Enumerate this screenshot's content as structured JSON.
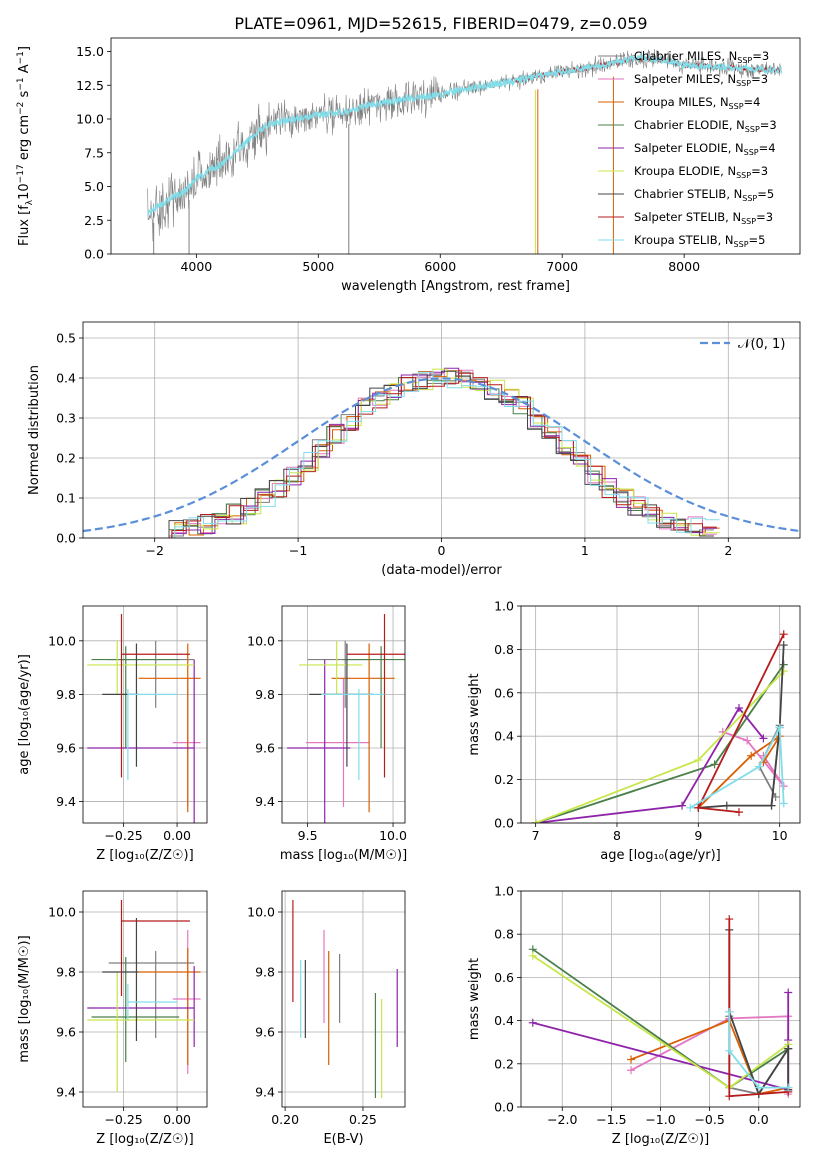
{
  "figure": {
    "title": "PLATE=0961, MJD=52615, FIBERID=0479, z=0.059"
  },
  "models": [
    {
      "label": "Chabrier MILES",
      "nssp": "3",
      "color": "#7f7f7f"
    },
    {
      "label": "Salpeter MILES",
      "nssp": "3",
      "color": "#e377c2"
    },
    {
      "label": "Kroupa MILES",
      "nssp": "4",
      "color": "#d95f02"
    },
    {
      "label": "Chabrier ELODIE",
      "nssp": "3",
      "color": "#4a7f4a"
    },
    {
      "label": "Salpeter ELODIE",
      "nssp": "4",
      "color": "#8e24aa"
    },
    {
      "label": "Kroupa ELODIE",
      "nssp": "3",
      "color": "#c7e64a"
    },
    {
      "label": "Chabrier STELIB",
      "nssp": "5",
      "color": "#444444"
    },
    {
      "label": "Salpeter STELIB",
      "nssp": "3",
      "color": "#b71c1c"
    },
    {
      "label": "Kroupa STELIB",
      "nssp": "5",
      "color": "#80deea"
    }
  ],
  "chart_data": [
    {
      "id": "spectrum",
      "type": "line",
      "xlabel": "wavelength [Angstrom, rest frame]",
      "ylabel_main": "Flux [f",
      "ylabel_sub1": "λ",
      "ylabel_mid": "10",
      "ylabel_sup1": "−17",
      "ylabel_post": " erg cm",
      "ylabel_sup2": "−2",
      "ylabel_mid2": " s",
      "ylabel_sup3": "−1",
      "ylabel_end": " A",
      "ylabel_sup4": "−1",
      "ylabel_close": "]",
      "xlim": [
        3300,
        8950
      ],
      "ylim": [
        0,
        16
      ],
      "xticks": [
        4000,
        5000,
        6000,
        7000,
        8000
      ],
      "yticks": [
        0,
        2.5,
        5,
        7.5,
        10,
        12.5,
        15
      ],
      "ytick_labels": [
        "0.0",
        "2.5",
        "5.0",
        "7.5",
        "10.0",
        "12.5",
        "15.0"
      ],
      "data_color": "#7f7f7f",
      "model_color": "#80deea",
      "continuum_x": [
        3600,
        3700,
        3800,
        3900,
        4000,
        4100,
        4200,
        4300,
        4400,
        4500,
        4600,
        4800,
        5000,
        5200,
        5400,
        5600,
        5800,
        6000,
        6200,
        6400,
        6600,
        6800,
        7000,
        7200,
        7400,
        7600,
        7800,
        8000,
        8200,
        8400,
        8600,
        8800
      ],
      "continuum_y": [
        3.0,
        3.6,
        4.2,
        4.6,
        5.6,
        6.2,
        6.6,
        7.4,
        8.2,
        9.0,
        9.6,
        10.0,
        10.3,
        10.5,
        11.0,
        11.3,
        11.6,
        11.8,
        12.2,
        12.5,
        12.8,
        13.2,
        13.5,
        13.8,
        14.1,
        14.5,
        14.4,
        14.0,
        13.9,
        13.8,
        13.7,
        13.6
      ]
    },
    {
      "id": "residuals",
      "type": "histogram",
      "xlabel": "(data-model)/error",
      "ylabel": "Normed distribution",
      "xlim": [
        -2.5,
        2.5
      ],
      "ylim": [
        0,
        0.54
      ],
      "xticks": [
        -2,
        -1,
        0,
        1,
        2
      ],
      "xtick_labels": [
        "−2",
        "−1",
        "0",
        "1",
        "2"
      ],
      "yticks": [
        0,
        0.1,
        0.2,
        0.3,
        0.4,
        0.5
      ],
      "ytick_labels": [
        "0.0",
        "0.1",
        "0.2",
        "0.3",
        "0.4",
        "0.5"
      ],
      "legend": "𝒩(0, 1)",
      "gauss_color": "#5b8fd9",
      "bin_width": 0.1,
      "center_values": [
        0.022,
        0.028,
        0.035,
        0.046,
        0.06,
        0.078,
        0.1,
        0.125,
        0.155,
        0.19,
        0.225,
        0.26,
        0.29,
        0.33,
        0.35,
        0.37,
        0.385,
        0.395,
        0.4,
        0.4,
        0.395,
        0.385,
        0.37,
        0.35,
        0.33,
        0.29,
        0.26,
        0.225,
        0.19,
        0.155,
        0.125,
        0.1,
        0.078,
        0.06,
        0.046,
        0.035,
        0.028,
        0.022
      ]
    },
    {
      "id": "z-age",
      "type": "errorbar",
      "xlabel": "Z [log₁₀(Z/Z☉)]",
      "ylabel": "age  [log₁₀(age/yr)]",
      "xlim": [
        -0.44,
        0.14
      ],
      "ylim": [
        9.32,
        10.13
      ],
      "xticks": [
        -0.25,
        0.0
      ],
      "xtick_labels": [
        "−0.25",
        "0.00"
      ],
      "yticks": [
        9.4,
        9.6,
        9.8,
        10.0
      ],
      "ytick_labels": [
        "9.4",
        "9.6",
        "9.8",
        "10.0"
      ]
    },
    {
      "id": "mass-age",
      "type": "errorbar",
      "xlabel": "mass [log₁₀(M/M☉)]",
      "ylabel": "",
      "xlim": [
        9.35,
        10.07
      ],
      "ylim": [
        9.32,
        10.13
      ],
      "xticks": [
        9.5,
        10.0
      ],
      "xtick_labels": [
        "9.5",
        "10.0"
      ],
      "yticks": [
        9.4,
        9.6,
        9.8,
        10.0
      ],
      "ytick_labels": [
        "9.4",
        "9.6",
        "9.8",
        "10.0"
      ]
    },
    {
      "id": "age-weight",
      "type": "line",
      "xlabel": "age  [log₁₀(age/yr)]",
      "ylabel": "mass weight",
      "xlim": [
        6.82,
        10.25
      ],
      "ylim": [
        0,
        1
      ],
      "xticks": [
        7,
        8,
        9,
        10
      ],
      "xtick_labels": [
        "7",
        "8",
        "9",
        "10"
      ],
      "yticks": [
        0,
        0.2,
        0.4,
        0.6,
        0.8,
        1.0
      ],
      "ytick_labels": [
        "0.0",
        "0.2",
        "0.4",
        "0.6",
        "0.8",
        "1.0"
      ]
    },
    {
      "id": "z-mass",
      "type": "errorbar",
      "xlabel": "Z [log₁₀(Z/Z☉)]",
      "ylabel": "mass [log₁₀(M/M☉)]",
      "xlim": [
        -0.44,
        0.14
      ],
      "ylim": [
        9.35,
        10.07
      ],
      "xticks": [
        -0.25,
        0.0
      ],
      "xtick_labels": [
        "−0.25",
        "0.00"
      ],
      "yticks": [
        9.4,
        9.6,
        9.8,
        10.0
      ],
      "ytick_labels": [
        "9.4",
        "9.6",
        "9.8",
        "10.0"
      ]
    },
    {
      "id": "ebv-mass",
      "type": "errorbar",
      "xlabel": "E(B-V)",
      "ylabel": "",
      "xlim": [
        0.198,
        0.277
      ],
      "ylim": [
        9.35,
        10.07
      ],
      "xticks": [
        0.2,
        0.25
      ],
      "xtick_labels": [
        "0.20",
        "0.25"
      ],
      "yticks": [
        9.4,
        9.6,
        9.8,
        10.0
      ],
      "ytick_labels": [
        "9.4",
        "9.6",
        "9.8",
        "10.0"
      ]
    },
    {
      "id": "z-weight",
      "type": "line",
      "xlabel": "Z [log₁₀(Z/Z☉)]",
      "ylabel": "mass weight",
      "xlim": [
        -2.42,
        0.42
      ],
      "ylim": [
        0,
        1
      ],
      "xticks": [
        -2.0,
        -1.5,
        -1.0,
        -0.5,
        0.0
      ],
      "xtick_labels": [
        "−2.0",
        "−1.5",
        "−1.0",
        "−0.5",
        "0.0"
      ],
      "yticks": [
        0,
        0.2,
        0.4,
        0.6,
        0.8,
        1.0
      ],
      "ytick_labels": [
        "0.0",
        "0.2",
        "0.4",
        "0.6",
        "0.8",
        "1.0"
      ]
    }
  ],
  "fits": [
    {
      "Z": -0.1,
      "Zlo": -0.32,
      "Zhi": 0.08,
      "age": 9.93,
      "ageLo": 9.75,
      "ageHi": 10.0,
      "mass": 9.72,
      "mLo": 9.58,
      "mHi": 9.84,
      "mz": 9.83,
      "mzlo": 9.58,
      "mzhi": 9.87,
      "ebv": 0.235,
      "ebvLo": 9.63,
      "ebvHi": 9.86,
      "ageW": [
        [
          9.9,
          0.08
        ],
        [
          10.0,
          0.45
        ],
        [
          9.75,
          0.26
        ],
        [
          9.95,
          0.12
        ]
      ],
      "zW": [
        [
          -0.3,
          0.42
        ],
        [
          -0.3,
          0.09
        ],
        [
          0.0,
          0.06
        ],
        [
          0.3,
          0.27
        ]
      ]
    },
    {
      "Z": 0.05,
      "Zlo": -0.02,
      "Zhi": 0.11,
      "age": 9.62,
      "ageLo": 9.38,
      "ageHi": 9.86,
      "mass": 9.71,
      "mLo": 9.48,
      "mHi": 9.94,
      "mz": 9.71,
      "mzlo": 9.46,
      "mzhi": 9.94,
      "ebv": 0.225,
      "ebvLo": 9.63,
      "ebvHi": 9.94,
      "ageW": [
        [
          9.3,
          0.42
        ],
        [
          9.6,
          0.38
        ],
        [
          10.05,
          0.17
        ],
        [
          9.8,
          0.31
        ]
      ],
      "zW": [
        [
          -1.3,
          0.17
        ],
        [
          -0.3,
          0.41
        ],
        [
          0.3,
          0.42
        ],
        [
          0.3,
          0.06
        ]
      ]
    },
    {
      "Z": 0.05,
      "Zlo": -0.18,
      "Zhi": 0.11,
      "age": 9.86,
      "ageLo": 9.36,
      "ageHi": 9.99,
      "mass": 9.86,
      "mLo": 9.45,
      "mHi": 9.94,
      "mz": 9.8,
      "mzlo": 9.49,
      "mzhi": 9.88,
      "ebv": 0.228,
      "ebvLo": 9.49,
      "ebvHi": 9.87,
      "ageW": [
        [
          9.0,
          0.07
        ],
        [
          9.65,
          0.31
        ],
        [
          10.0,
          0.4
        ],
        [
          9.8,
          0.28
        ]
      ],
      "zW": [
        [
          -1.3,
          0.22
        ],
        [
          -0.3,
          0.4
        ],
        [
          0.0,
          0.06
        ],
        [
          0.3,
          0.09
        ]
      ]
    },
    {
      "Z": -0.24,
      "Zlo": -0.4,
      "Zhi": 0.01,
      "age": 9.93,
      "ageLo": 9.6,
      "ageHi": 9.98,
      "mass": 9.93,
      "mLo": 9.55,
      "mHi": 9.96,
      "mz": 9.65,
      "mzlo": 9.5,
      "mzhi": 9.85,
      "ebv": 0.258,
      "ebvLo": 9.38,
      "ebvHi": 9.73,
      "ageW": [
        [
          7.0,
          0.0
        ],
        [
          9.2,
          0.27
        ],
        [
          10.05,
          0.73
        ]
      ],
      "zW": [
        [
          -2.3,
          0.73
        ],
        [
          -0.3,
          0.09
        ],
        [
          0.3,
          0.27
        ]
      ]
    },
    {
      "Z": 0.08,
      "Zlo": -0.42,
      "Zhi": 0.08,
      "age": 9.6,
      "ageLo": 9.29,
      "ageHi": 9.93,
      "mass": 9.6,
      "mLo": 9.29,
      "mHi": 9.93,
      "mz": 9.68,
      "mzlo": 9.55,
      "mzhi": 9.82,
      "ebv": 0.272,
      "ebvLo": 9.55,
      "ebvHi": 9.81,
      "ageW": [
        [
          7.0,
          0.0
        ],
        [
          8.8,
          0.08
        ],
        [
          9.5,
          0.53
        ],
        [
          9.8,
          0.39
        ]
      ],
      "zW": [
        [
          -2.3,
          0.39
        ],
        [
          0.3,
          0.08
        ],
        [
          0.3,
          0.53
        ],
        [
          0.3,
          0.31
        ]
      ]
    },
    {
      "Z": -0.28,
      "Zlo": -0.42,
      "Zhi": 0.08,
      "age": 9.91,
      "ageLo": 9.8,
      "ageHi": 10.0,
      "mass": 9.67,
      "mLo": 9.6,
      "mHi": 9.99,
      "mz": 9.64,
      "mzlo": 9.4,
      "mzhi": 9.8,
      "ebv": 0.262,
      "ebvLo": 9.38,
      "ebvHi": 9.71,
      "ageW": [
        [
          7.0,
          0.0
        ],
        [
          9.0,
          0.29
        ],
        [
          10.05,
          0.7
        ]
      ],
      "zW": [
        [
          -2.3,
          0.7
        ],
        [
          -0.3,
          0.09
        ],
        [
          0.3,
          0.29
        ]
      ]
    },
    {
      "Z": -0.19,
      "Zlo": -0.35,
      "Zhi": -0.18,
      "age": 9.8,
      "ageLo": 9.53,
      "ageHi": 9.99,
      "mass": 9.73,
      "mLo": 9.53,
      "mHi": 9.97,
      "mz": 9.8,
      "mzlo": 9.57,
      "mzhi": 9.98,
      "ebv": 0.213,
      "ebvLo": 9.58,
      "ebvHi": 9.84,
      "ageW": [
        [
          9.0,
          0.07
        ],
        [
          9.35,
          0.08
        ],
        [
          9.9,
          0.08
        ],
        [
          10.0,
          0.44
        ],
        [
          10.05,
          0.82
        ]
      ],
      "zW": [
        [
          -0.3,
          0.82
        ],
        [
          -0.3,
          0.44
        ],
        [
          0.0,
          0.06
        ],
        [
          0.3,
          0.27
        ],
        [
          0.3,
          0.08
        ]
      ]
    },
    {
      "Z": -0.26,
      "Zlo": -0.26,
      "Zhi": 0.06,
      "age": 9.95,
      "ageLo": 9.49,
      "ageHi": 10.1,
      "mass": 9.95,
      "mLo": 9.45,
      "mHi": 10.1,
      "mz": 9.97,
      "mzlo": 9.72,
      "mzhi": 10.04,
      "ebv": 0.205,
      "ebvLo": 9.7,
      "ebvHi": 10.04,
      "ageW": [
        [
          9.5,
          0.05
        ],
        [
          9.0,
          0.07
        ],
        [
          10.05,
          0.87
        ]
      ],
      "zW": [
        [
          -0.3,
          0.87
        ],
        [
          -0.3,
          0.05
        ],
        [
          0.3,
          0.07
        ]
      ]
    },
    {
      "Z": -0.23,
      "Zlo": -0.23,
      "Zhi": 0.0,
      "age": 9.8,
      "ageLo": 9.48,
      "ageHi": 9.82,
      "mass": 9.8,
      "mLo": 9.48,
      "mHi": 9.82,
      "mz": 9.7,
      "mzlo": 9.64,
      "mzhi": 9.76,
      "ebv": 0.21,
      "ebvLo": 9.58,
      "ebvHi": 9.84,
      "ageW": [
        [
          8.9,
          0.07
        ],
        [
          9.75,
          0.26
        ],
        [
          10.0,
          0.44
        ],
        [
          10.05,
          0.09
        ]
      ],
      "zW": [
        [
          -0.3,
          0.44
        ],
        [
          -0.3,
          0.26
        ],
        [
          0.0,
          0.09
        ],
        [
          0.3,
          0.09
        ]
      ]
    }
  ]
}
